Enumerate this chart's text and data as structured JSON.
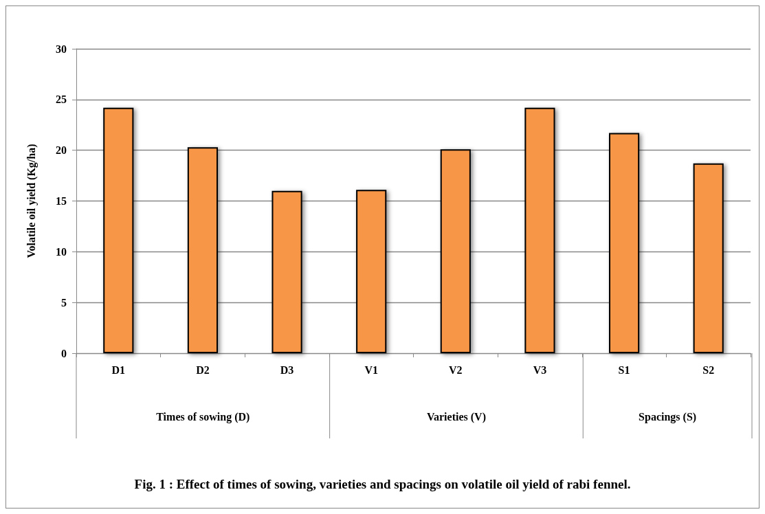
{
  "chart_data": {
    "type": "bar",
    "title": "Fig. 1 : Effect of times of sowing, varieties and spacings on volatile oil yield of rabi fennel.",
    "ylabel": "Volatile oil yield (Kg/ha)",
    "categories": [
      "D1",
      "D2",
      "D3",
      "V1",
      "V2",
      "V3",
      "S1",
      "S2"
    ],
    "values": [
      24.2,
      20.3,
      16.0,
      16.1,
      20.1,
      24.2,
      21.7,
      18.7
    ],
    "color": "#f79646",
    "ylim": [
      0,
      30
    ],
    "yticks": [
      0,
      5,
      10,
      15,
      20,
      25,
      30
    ],
    "grid": "y",
    "annotations": [
      "Times of sowing (D)",
      "Varieties (V)",
      "Spacings (S)"
    ]
  }
}
